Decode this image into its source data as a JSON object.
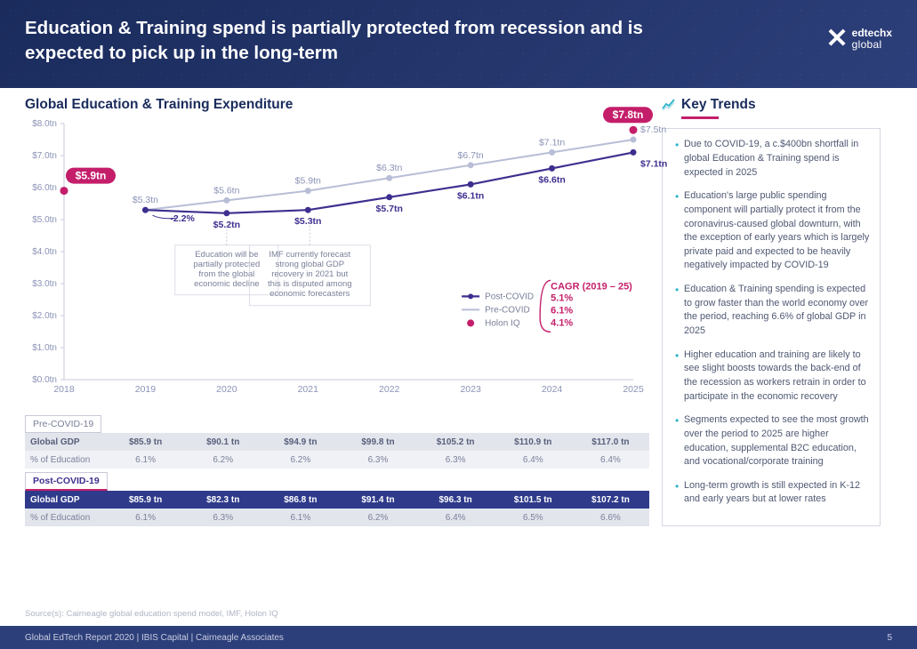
{
  "header": {
    "title": "Education & Training spend is partially protected from recession and is expected to pick up in the long-term",
    "logo_brand": "edtechx",
    "logo_sub": "global"
  },
  "chart": {
    "title": "Global Education & Training Expenditure",
    "type": "line",
    "years": [
      "2018",
      "2019",
      "2020",
      "2021",
      "2022",
      "2023",
      "2024",
      "2025"
    ],
    "ylim": [
      0,
      8
    ],
    "ytick_step": 1,
    "y_unit_suffix": "tn",
    "y_prefix": "$",
    "pre_covid": {
      "values": [
        null,
        5.3,
        5.6,
        5.9,
        6.3,
        6.7,
        7.1,
        7.5
      ],
      "labels": [
        "",
        "$5.3tn",
        "$5.6tn",
        "$5.9tn",
        "$6.3tn",
        "$6.7tn",
        "$7.1tn",
        "$7.5tn"
      ],
      "color": "#b8bed6"
    },
    "post_covid": {
      "values": [
        null,
        5.3,
        5.2,
        5.3,
        5.7,
        6.1,
        6.6,
        7.1
      ],
      "labels": [
        "",
        "",
        "$5.2tn",
        "$5.3tn",
        "$5.7tn",
        "$6.1tn",
        "$6.6tn",
        "$7.1tn"
      ],
      "color": "#3d2f8f"
    },
    "holon": {
      "points": [
        {
          "year": "2018",
          "value": 5.9,
          "label": "$5.9tn"
        },
        {
          "year": "2025",
          "value": 7.8,
          "label": "$7.8tn"
        }
      ],
      "color": "#c41e6a"
    },
    "decline_label": "-2.2%",
    "note1": "Education will be partially protected from the global economic decline",
    "note2": "IMF currently forecast strong global GDP recovery in 2021 but this is disputed among economic forecasters",
    "legend": {
      "post": "Post-COVID",
      "pre": "Pre-COVID",
      "holon": "Holon IQ"
    },
    "cagr": {
      "title": "CAGR (2019 – 25)",
      "post": "5.1%",
      "pre": "6.1%",
      "holon": "4.1%"
    },
    "axis_color": "#c7cad8",
    "ytick_labels": [
      "$0.0tn",
      "$1.0tn",
      "$2.0tn",
      "$3.0tn",
      "$4.0tn",
      "$5.0tn",
      "$6.0tn",
      "$7.0tn",
      "$8.0tn"
    ]
  },
  "tables": {
    "pre_label": "Pre-COVID-19",
    "post_label": "Post-COVID-19",
    "row_gdp": "Global GDP",
    "row_pct": "% of Education",
    "years": [
      "2019",
      "2020",
      "2021",
      "2022",
      "2023",
      "2024",
      "2025"
    ],
    "pre": {
      "gdp": [
        "$85.9 tn",
        "$90.1 tn",
        "$94.9 tn",
        "$99.8 tn",
        "$105.2 tn",
        "$110.9 tn",
        "$117.0 tn"
      ],
      "pct": [
        "6.1%",
        "6.2%",
        "6.2%",
        "6.3%",
        "6.3%",
        "6.4%",
        "6.4%"
      ]
    },
    "post": {
      "gdp": [
        "$85.9 tn",
        "$82.3 tn",
        "$86.8 tn",
        "$91.4 tn",
        "$96.3 tn",
        "$101.5 tn",
        "$107.2 tn"
      ],
      "pct": [
        "6.1%",
        "6.3%",
        "6.1%",
        "6.2%",
        "6.4%",
        "6.5%",
        "6.6%"
      ]
    }
  },
  "key_trends": {
    "title": "Key Trends",
    "items": [
      "Due to COVID-19, a c.$400bn shortfall in global Education & Training spend is expected in 2025",
      "Education's large public spending component will partially protect it from the coronavirus-caused global downturn, with the exception of early years which is largely private paid and expected to be heavily negatively impacted by COVID-19",
      "Education & Training spending is expected to grow faster than the world economy over the period, reaching 6.6% of global GDP in 2025",
      "Higher education and training are likely to see slight boosts towards the back-end of the recession as workers retrain in order to participate in the economic recovery",
      "Segments expected to see the most growth over the period to 2025 are higher education, supplemental B2C education, and vocational/corporate training",
      "Long-term growth is still expected in K-12 and early years but at lower rates"
    ]
  },
  "source": "Source(s): Cairneagle global education spend model, IMF, Holon IQ",
  "footer": {
    "left": "Global EdTech Report 2020 | IBIS Capital | Cairneagle Associates",
    "page": "5"
  }
}
